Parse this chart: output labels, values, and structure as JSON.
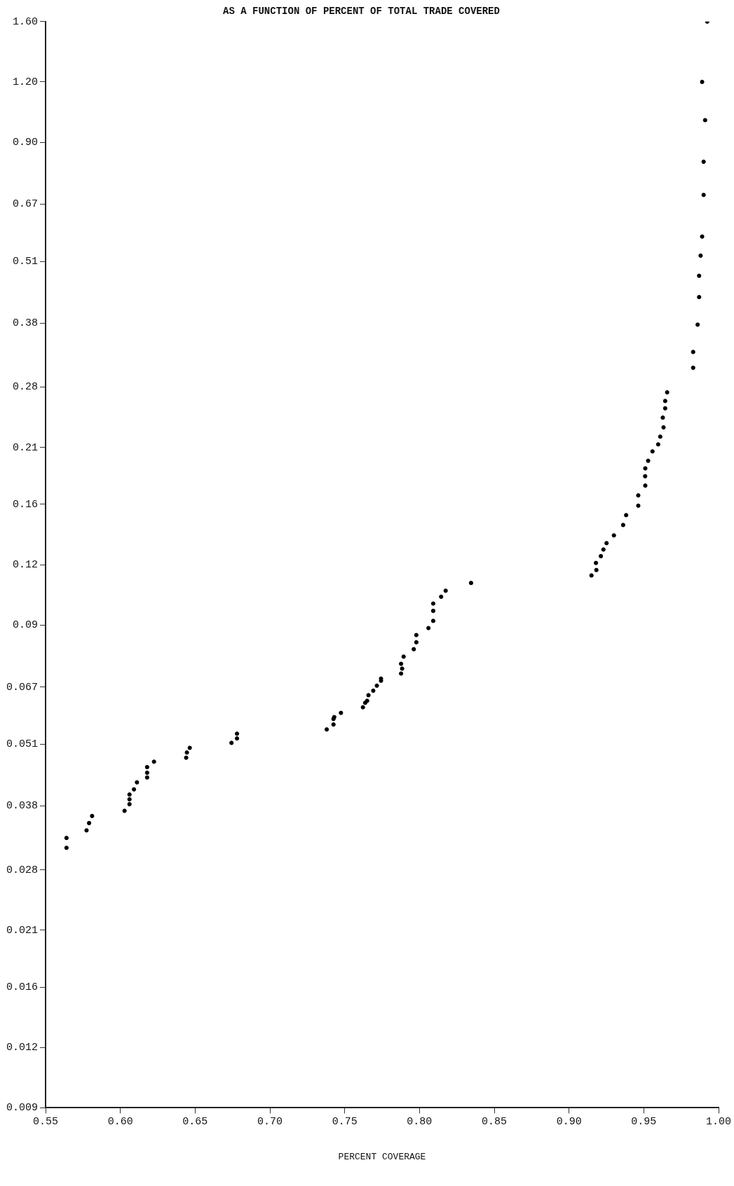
{
  "chart_data": {
    "type": "scatter",
    "title": "AS A FUNCTION OF PERCENT OF TOTAL TRADE COVERED",
    "xlabel": "PERCENT COVERAGE",
    "log": "y",
    "grid": false,
    "legend": false,
    "marker": "circle",
    "xlim": [
      0.55,
      1.0
    ],
    "xticks": [
      {
        "value": 0.55,
        "label": "0.55"
      },
      {
        "value": 0.6,
        "label": "0.60"
      },
      {
        "value": 0.65,
        "label": "0.65"
      },
      {
        "value": 0.7,
        "label": "0.70"
      },
      {
        "value": 0.75,
        "label": "0.75"
      },
      {
        "value": 0.8,
        "label": "0.80"
      },
      {
        "value": 0.85,
        "label": "0.85"
      },
      {
        "value": 0.9,
        "label": "0.90"
      },
      {
        "value": 0.95,
        "label": "0.95"
      },
      {
        "value": 1.0,
        "label": "1.00"
      }
    ],
    "ylim": [
      0.009,
      1.6
    ],
    "yticks": [
      0.009,
      0.012,
      0.016,
      0.021,
      0.028,
      0.038,
      0.051,
      0.067,
      0.09,
      0.12,
      0.16,
      0.21,
      0.28,
      0.38,
      0.51,
      0.67,
      {
        "value": 0.9,
        "label": "0.90"
      },
      {
        "value": 1.2,
        "label": "1.20"
      },
      {
        "value": 1.6,
        "label": "1.60"
      }
    ],
    "series": [
      {
        "color": "#000000",
        "x": [
          0.564,
          0.564,
          0.5774,
          0.5791,
          0.5811,
          0.6028,
          0.6061,
          0.6061,
          0.6061,
          0.6091,
          0.6111,
          0.6179,
          0.6179,
          0.6179,
          0.6225,
          0.644,
          0.6445,
          0.6464,
          0.6743,
          0.678,
          0.678,
          0.738,
          0.7425,
          0.7425,
          0.743,
          0.7475,
          0.7622,
          0.7637,
          0.765,
          0.7659,
          0.7691,
          0.7715,
          0.7743,
          0.7743,
          0.7877,
          0.7884,
          0.7877,
          0.7894,
          0.7962,
          0.7979,
          0.7979,
          0.806,
          0.8092,
          0.8092,
          0.8092,
          0.8145,
          0.8175,
          0.8345,
          0.915,
          0.9183,
          0.918,
          0.9213,
          0.923,
          0.9251,
          0.93,
          0.9362,
          0.9382,
          0.9463,
          0.9463,
          0.951,
          0.9509,
          0.951,
          0.9529,
          0.9558,
          0.9596,
          0.961,
          0.9632,
          0.9627,
          0.9643,
          0.9643,
          0.9656,
          0.983,
          0.983,
          0.986,
          0.987,
          0.987,
          0.988,
          0.989,
          0.99,
          0.99,
          0.991,
          0.989,
          0.9924
        ],
        "values": [
          0.0311,
          0.0326,
          0.0338,
          0.035,
          0.0362,
          0.0371,
          0.0383,
          0.0392,
          0.0401,
          0.0411,
          0.0425,
          0.0435,
          0.0445,
          0.0457,
          0.0469,
          0.0478,
          0.049,
          0.0501,
          0.0513,
          0.0524,
          0.0536,
          0.0547,
          0.056,
          0.0575,
          0.058,
          0.0592,
          0.0608,
          0.0621,
          0.0627,
          0.0644,
          0.0658,
          0.0674,
          0.069,
          0.0697,
          0.0714,
          0.0731,
          0.0748,
          0.0774,
          0.0802,
          0.0829,
          0.0858,
          0.0887,
          0.0918,
          0.0963,
          0.0997,
          0.103,
          0.106,
          0.11,
          0.114,
          0.117,
          0.121,
          0.125,
          0.129,
          0.133,
          0.138,
          0.145,
          0.152,
          0.159,
          0.167,
          0.175,
          0.183,
          0.19,
          0.197,
          0.206,
          0.213,
          0.221,
          0.231,
          0.242,
          0.253,
          0.262,
          0.273,
          0.307,
          0.331,
          0.377,
          0.43,
          0.476,
          0.524,
          0.574,
          0.7,
          0.82,
          1.0,
          1.2,
          1.6
        ]
      }
    ]
  }
}
